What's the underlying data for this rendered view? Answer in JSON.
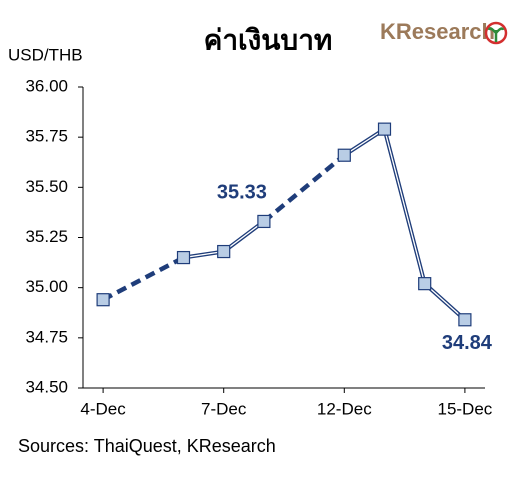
{
  "chart_data": {
    "type": "line",
    "title": "ค่าเงินบาท",
    "logo": "KResearch",
    "y_label": "USD/THB",
    "source": "Sources: ThaiQuest, KResearch",
    "categories": [
      "4-Dec",
      null,
      null,
      "7-Dec",
      null,
      null,
      "12-Dec",
      null,
      null,
      "15-Dec"
    ],
    "series": [
      {
        "name": "USD/THB",
        "color": "#1f3d7a",
        "marker_color": "#b9cde5",
        "values": [
          34.94,
          null,
          35.15,
          35.18,
          35.33,
          null,
          35.66,
          35.79,
          35.02,
          34.84
        ],
        "value_labels": [
          null,
          null,
          null,
          null,
          "35.33",
          null,
          null,
          null,
          null,
          "34.84"
        ]
      }
    ],
    "ylim": [
      34.5,
      36
    ],
    "yticks": [
      {
        "value": 34.5,
        "label": "34.50"
      },
      {
        "value": 34.75,
        "label": "34.75"
      },
      {
        "value": 35,
        "label": "35.00"
      },
      {
        "value": 35.25,
        "label": "35.25"
      },
      {
        "value": 35.5,
        "label": "35.50"
      },
      {
        "value": 35.75,
        "label": "35.75"
      },
      {
        "value": 36,
        "label": "36.00"
      }
    ],
    "grid": false
  }
}
